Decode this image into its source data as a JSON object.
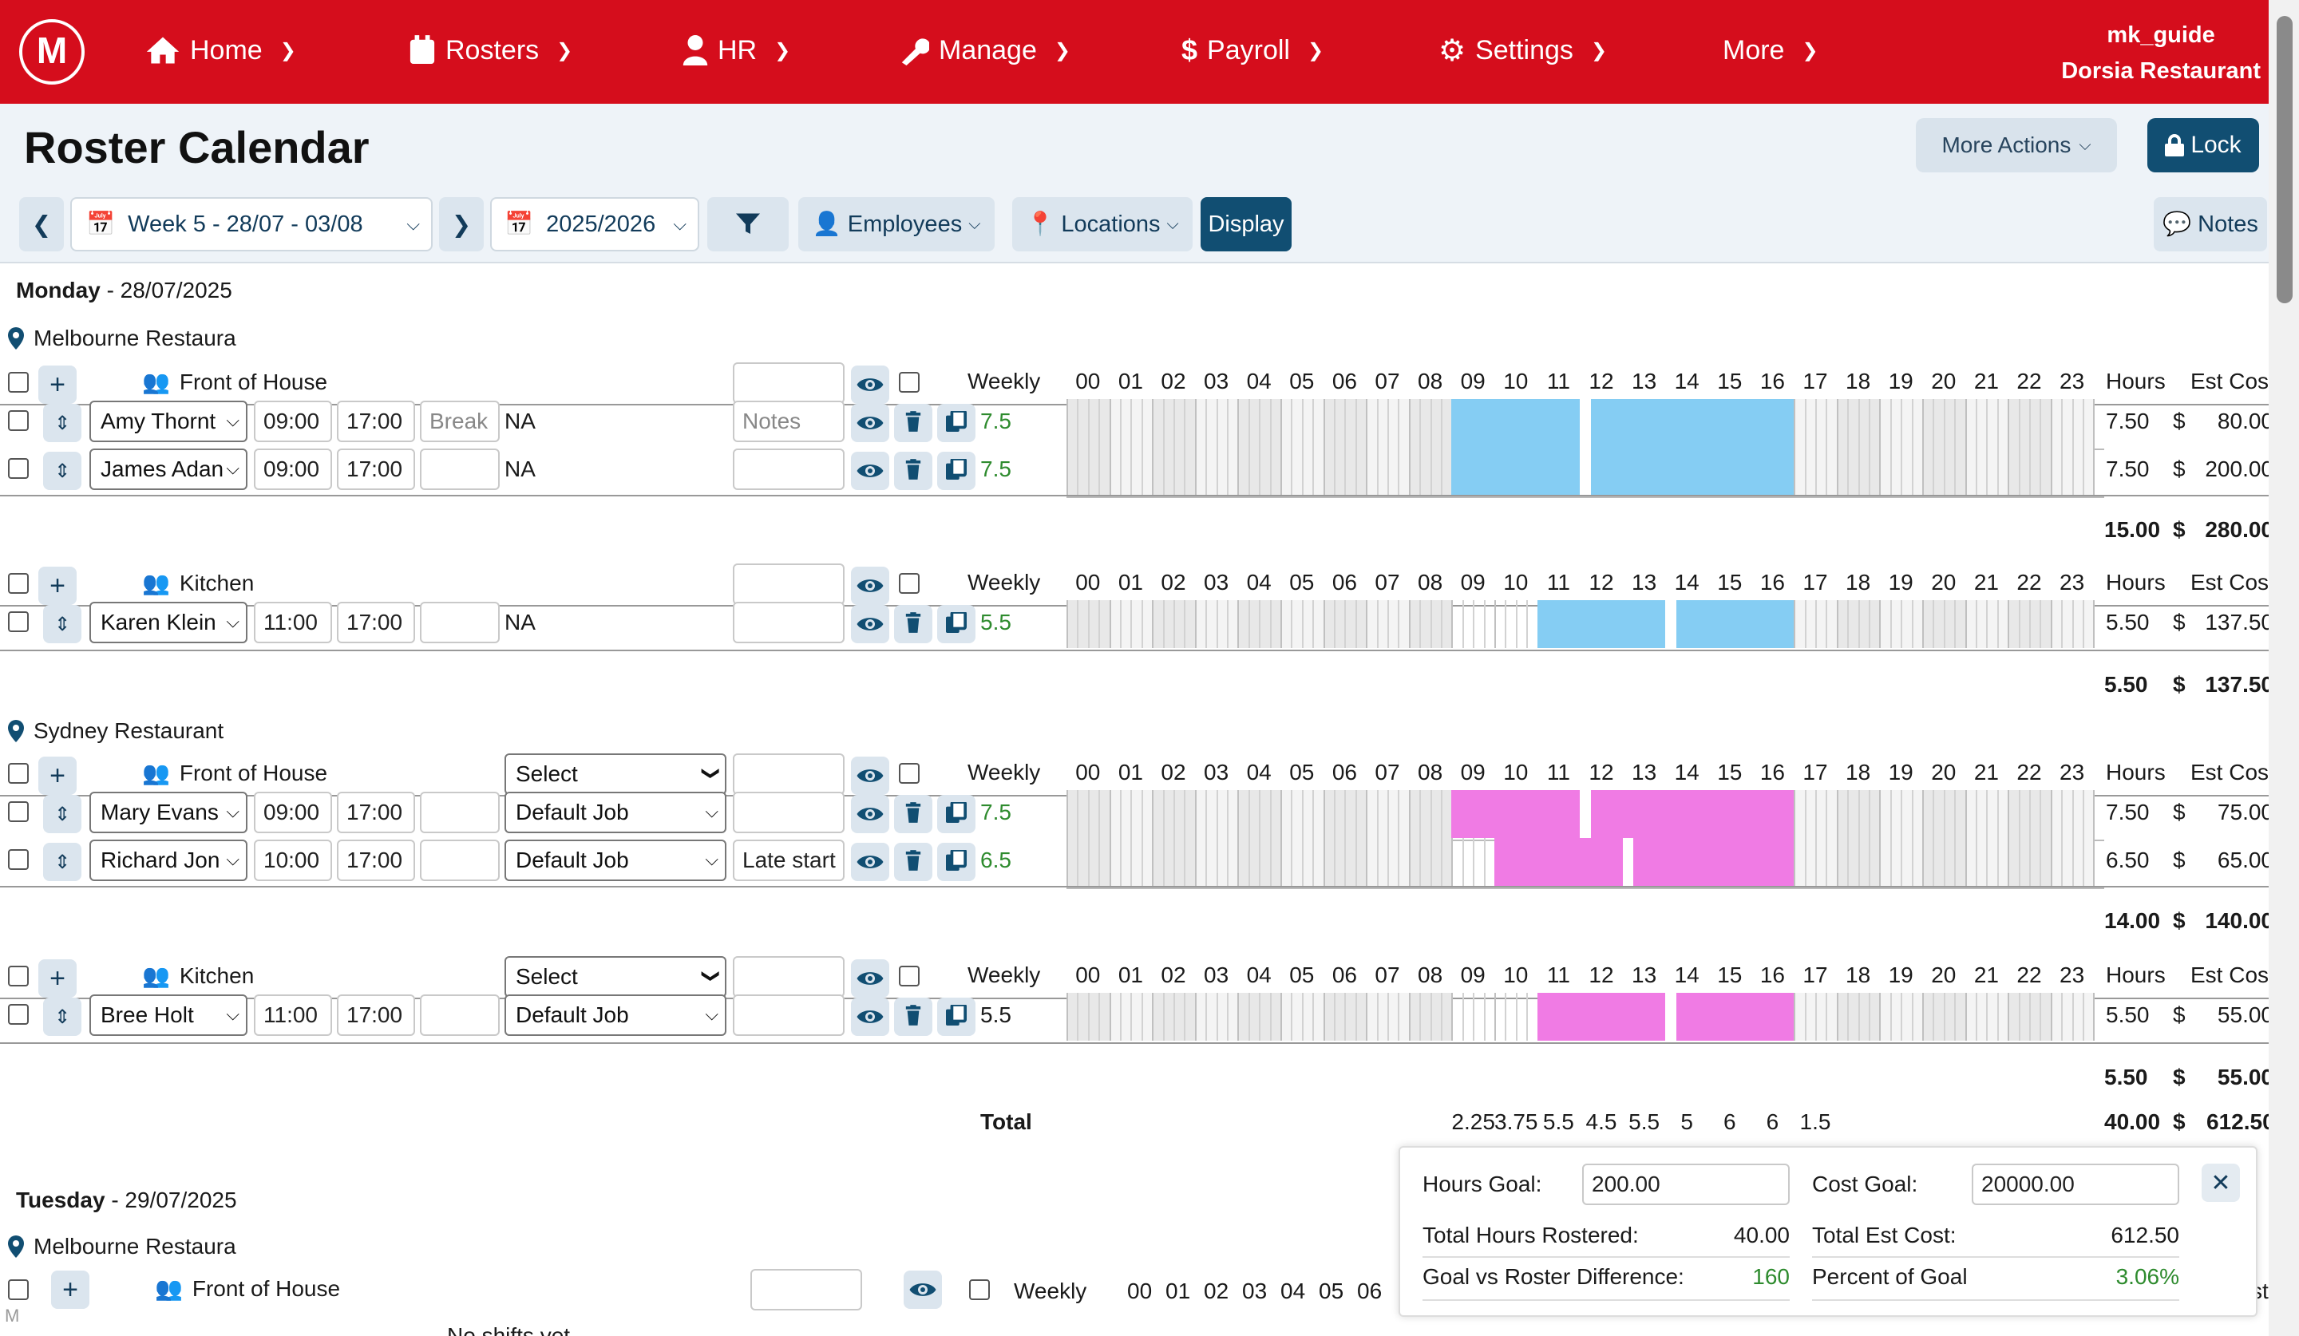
{
  "nav": {
    "logo": "M",
    "items": [
      {
        "label": "Home",
        "icon": "home-icon"
      },
      {
        "label": "Rosters",
        "icon": "calendar-icon"
      },
      {
        "label": "HR",
        "icon": "user-icon"
      },
      {
        "label": "Manage",
        "icon": "wrench-icon"
      },
      {
        "label": "Payroll",
        "icon": "dollar-icon"
      },
      {
        "label": "Settings",
        "icon": "gear-icon"
      },
      {
        "label": "More",
        "icon": ""
      }
    ],
    "username": "mk_guide",
    "company": "Dorsia Restaurant"
  },
  "page": {
    "title": "Roster Calendar",
    "more_actions": "More Actions",
    "lock": "Lock"
  },
  "toolbar": {
    "week": "Week 5 - 28/07 - 03/08",
    "year": "2025/2026",
    "employees": "Employees",
    "locations": "Locations",
    "display": "Display",
    "notes": "Notes"
  },
  "columns": {
    "weekly": "Weekly",
    "hours": [
      "00",
      "01",
      "02",
      "03",
      "04",
      "05",
      "06",
      "07",
      "08",
      "09",
      "10",
      "11",
      "12",
      "13",
      "14",
      "15",
      "16",
      "17",
      "18",
      "19",
      "20",
      "21",
      "22",
      "23"
    ],
    "hours_label": "Hours",
    "cost_label": "Est Cost"
  },
  "monday": {
    "label": "Monday",
    "date": "- 28/07/2025",
    "locations": [
      {
        "name": "Melbourne Restaura",
        "groups": [
          {
            "name": "Front of House",
            "select": "",
            "rows": [
              {
                "employee": "Amy Thornt",
                "start": "09:00",
                "end": "17:00",
                "break": "",
                "break_placeholder": "Break",
                "job": "NA",
                "notes": "",
                "notes_placeholder": "Notes",
                "weekly": "7.5",
                "hours": "7.50",
                "cost": "80.00"
              },
              {
                "employee": "James Adan",
                "start": "09:00",
                "end": "17:00",
                "break": "",
                "break_placeholder": "",
                "job": "NA",
                "notes": "",
                "notes_placeholder": "",
                "weekly": "7.5",
                "hours": "7.50",
                "cost": "200.00"
              }
            ],
            "subtotal_hours": "15.00",
            "subtotal_cost": "280.00"
          },
          {
            "name": "Kitchen",
            "select": "",
            "rows": [
              {
                "employee": "Karen Klein",
                "start": "11:00",
                "end": "17:00",
                "break": "",
                "break_placeholder": "",
                "job": "NA",
                "notes": "",
                "notes_placeholder": "",
                "weekly": "5.5",
                "hours": "5.50",
                "cost": "137.50"
              }
            ],
            "subtotal_hours": "5.50",
            "subtotal_cost": "137.50"
          }
        ]
      },
      {
        "name": "Sydney Restaurant",
        "groups": [
          {
            "name": "Front of House",
            "select": "Select",
            "rows": [
              {
                "employee": "Mary Evans",
                "start": "09:00",
                "end": "17:00",
                "break": "",
                "job": "Default Job",
                "notes": "",
                "weekly": "7.5",
                "hours": "7.50",
                "cost": "75.00"
              },
              {
                "employee": "Richard Jon",
                "start": "10:00",
                "end": "17:00",
                "break": "",
                "job": "Default Job",
                "notes": "Late start",
                "weekly": "6.5",
                "hours": "6.50",
                "cost": "65.00"
              }
            ],
            "subtotal_hours": "14.00",
            "subtotal_cost": "140.00"
          },
          {
            "name": "Kitchen",
            "select": "Select",
            "rows": [
              {
                "employee": "Bree Holt",
                "start": "11:00",
                "end": "17:00",
                "break": "",
                "job": "Default Job",
                "notes": "",
                "weekly": "5.5",
                "hours": "5.50",
                "cost": "55.00"
              }
            ],
            "subtotal_hours": "5.50",
            "subtotal_cost": "55.00"
          }
        ]
      }
    ],
    "total_label": "Total",
    "hourly_totals": [
      "2.25",
      "3.75",
      "5.5",
      "4.5",
      "5.5",
      "5",
      "6",
      "6",
      "1.5"
    ],
    "total_hours": "40.00",
    "total_cost": "612.50",
    "currency": "$"
  },
  "tuesday": {
    "label": "Tuesday",
    "date": "- 29/07/2025",
    "location": "Melbourne Restaura",
    "group": "Front of House",
    "weekly": "Weekly",
    "hours": [
      "00",
      "01",
      "02",
      "03",
      "04",
      "05",
      "06"
    ],
    "no_shifts": "No shifts yet",
    "cost_partial": "st"
  },
  "goals": {
    "hours_goal_label": "Hours Goal:",
    "hours_goal": "200.00",
    "cost_goal_label": "Cost Goal:",
    "cost_goal": "20000.00",
    "total_hours_label": "Total Hours Rostered:",
    "total_hours": "40.00",
    "total_cost_label": "Total Est Cost:",
    "total_cost": "612.50",
    "diff_label": "Goal vs Roster Difference:",
    "diff": "160",
    "percent_label": "Percent of Goal",
    "percent": "3.06%"
  },
  "footer_mark": "M",
  "colors": {
    "nav": "#d50d1c",
    "dark_blue": "#114e72",
    "blue_shift": "#85cdf3",
    "pink_shift": "#f07be4",
    "green": "#2e8b2e"
  }
}
